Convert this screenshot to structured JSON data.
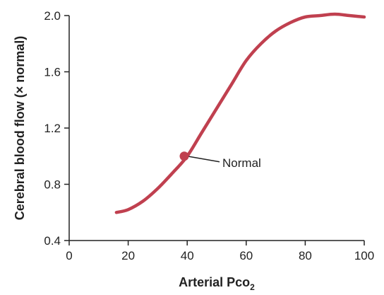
{
  "chart_data": {
    "type": "line",
    "xlabel": "Arterial Pco",
    "xlabel_subscript": "2",
    "ylabel": "Cerebral blood flow (× normal)",
    "xlim": [
      0,
      100
    ],
    "ylim": [
      0.4,
      2.0
    ],
    "x_ticks": [
      0,
      20,
      40,
      60,
      80,
      100
    ],
    "x_tick_labels": [
      "0",
      "20",
      "40",
      "60",
      "80",
      "100"
    ],
    "y_ticks": [
      0.4,
      0.8,
      1.2,
      1.6,
      2.0
    ],
    "y_tick_labels": [
      "0.4",
      "0.8",
      "1.2",
      "1.6",
      "2.0"
    ],
    "grid": false,
    "series": [
      {
        "color": "#c0404f",
        "x": [
          16,
          20,
          25,
          30,
          35,
          40,
          45,
          50,
          55,
          60,
          65,
          70,
          75,
          80,
          85,
          90,
          95,
          100
        ],
        "y": [
          0.6,
          0.62,
          0.68,
          0.77,
          0.88,
          1.0,
          1.17,
          1.34,
          1.51,
          1.68,
          1.8,
          1.89,
          1.95,
          1.99,
          2.0,
          2.01,
          2.0,
          1.99
        ]
      }
    ],
    "annotations": [
      {
        "text": "Normal",
        "x": 39,
        "y": 1.0,
        "marker_color": "#c0404f"
      }
    ]
  }
}
